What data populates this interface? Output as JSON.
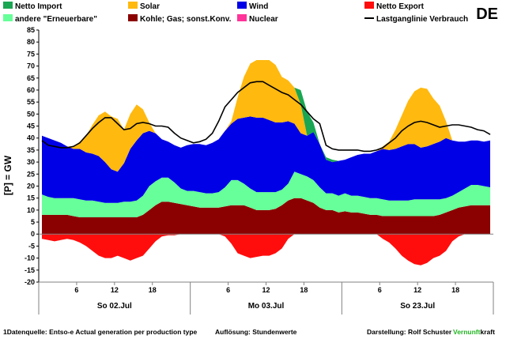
{
  "country": "DE",
  "chart_data": {
    "type": "area",
    "ylabel": "[P] = GW",
    "ylim": [
      -20,
      85
    ],
    "y_ticks": [
      -20,
      -15,
      -10,
      -5,
      0,
      5,
      10,
      15,
      20,
      25,
      30,
      35,
      40,
      45,
      50,
      55,
      60,
      65,
      70,
      75,
      80,
      85
    ],
    "x_hour_ticks": [
      {
        "hour": 6,
        "label": "6"
      },
      {
        "hour": 12,
        "label": "12"
      },
      {
        "hour": 18,
        "label": "18"
      },
      {
        "hour": 30,
        "label": "6"
      },
      {
        "hour": 36,
        "label": "12"
      },
      {
        "hour": 42,
        "label": "18"
      },
      {
        "hour": 54,
        "label": "6"
      },
      {
        "hour": 60,
        "label": "12"
      },
      {
        "hour": 66,
        "label": "18"
      }
    ],
    "days": [
      "So 02.Jul",
      "Mo 03.Jul",
      "So 23.Jul"
    ],
    "hours": [
      0,
      1,
      2,
      3,
      4,
      5,
      6,
      7,
      8,
      9,
      10,
      11,
      12,
      13,
      14,
      15,
      16,
      17,
      18,
      19,
      20,
      21,
      22,
      23,
      24,
      25,
      26,
      27,
      28,
      29,
      30,
      31,
      32,
      33,
      34,
      35,
      36,
      37,
      38,
      39,
      40,
      41,
      42,
      43,
      44,
      45,
      46,
      47,
      48,
      49,
      50,
      51,
      52,
      53,
      54,
      55,
      56,
      57,
      58,
      59,
      60,
      61,
      62,
      63,
      64,
      65,
      66,
      67,
      68,
      69,
      70,
      71
    ],
    "legend": [
      {
        "key": "import",
        "label": "Netto Import",
        "color": "#1aa653"
      },
      {
        "key": "solar",
        "label": "Solar",
        "color": "#ffb90f"
      },
      {
        "key": "wind",
        "label": "Wind",
        "color": "#0000e6"
      },
      {
        "key": "export",
        "label": "Netto Export",
        "color": "#ff0d0d"
      },
      {
        "key": "renew",
        "label": "andere \"Erneuerbare\"",
        "color": "#66ff99"
      },
      {
        "key": "fossil",
        "label": "Kohle; Gas; sonst.Konv.",
        "color": "#8b0000"
      },
      {
        "key": "nuclear",
        "label": "Nuclear",
        "color": "#ff3399"
      },
      {
        "key": "load",
        "label": "Lastganglinie Verbrauch",
        "color": "#000000"
      }
    ],
    "series": [
      {
        "key": "fossil",
        "name": "Kohle; Gas; sonst.Konv.",
        "values": [
          8,
          8,
          8,
          8,
          8,
          7.5,
          7,
          7,
          7,
          7,
          7,
          7,
          7,
          7,
          7,
          7,
          8,
          10,
          12,
          13.5,
          13.5,
          13,
          12.5,
          12,
          11.5,
          11,
          11,
          11,
          11,
          11.5,
          12,
          12,
          12,
          11,
          10,
          10,
          10,
          10.5,
          12,
          14,
          15,
          15,
          14,
          13,
          11,
          10,
          10,
          9,
          9.5,
          9,
          9,
          8.5,
          8,
          8,
          7.5,
          7.5,
          7.5,
          7.5,
          7.5,
          7.5,
          7.5,
          7.5,
          7.5,
          8,
          9,
          10,
          11,
          11.5,
          12,
          12,
          12,
          12
        ]
      },
      {
        "key": "renew",
        "name": "andere \"Erneuerbare\"",
        "values": [
          8.5,
          7.5,
          7,
          7,
          7,
          7.5,
          7.5,
          7,
          7,
          6.5,
          6,
          6,
          6,
          6.5,
          6.5,
          7,
          8,
          10,
          10,
          10,
          10,
          8.5,
          6.5,
          6,
          6.5,
          6.5,
          6,
          6,
          6.5,
          8,
          10.5,
          10.5,
          9,
          8,
          7.5,
          7.5,
          7.5,
          7,
          6.5,
          7,
          11,
          10,
          10,
          9.5,
          8.5,
          7,
          7,
          7,
          7.5,
          7,
          7,
          7,
          7,
          7,
          7,
          6.5,
          6.5,
          6.5,
          6.5,
          7,
          7,
          7,
          7,
          6.5,
          6,
          6,
          6.5,
          7.5,
          8.5,
          8.5,
          8,
          7.5
        ]
      },
      {
        "key": "wind",
        "name": "Wind",
        "values": [
          24.5,
          24.5,
          24,
          23,
          21.5,
          20.5,
          21,
          20,
          19.5,
          19,
          17,
          14,
          13,
          16,
          22,
          25,
          26,
          23,
          20,
          16,
          15,
          15.5,
          17,
          19,
          19.5,
          20,
          20,
          21,
          22,
          23.5,
          23.5,
          25.5,
          27.5,
          30,
          31,
          31,
          30,
          29,
          28,
          26,
          20,
          17,
          17,
          20,
          18,
          14,
          13,
          14.5,
          14,
          16,
          17,
          18,
          18.5,
          19.5,
          21,
          21,
          21.5,
          22.5,
          23.5,
          23,
          21.5,
          22,
          23,
          24,
          25,
          23,
          21,
          19.5,
          18.5,
          18.5,
          18.5,
          19.5
        ]
      },
      {
        "key": "solar",
        "name": "Solar",
        "values": [
          0,
          0,
          0,
          0,
          0,
          1,
          3,
          7,
          12,
          17,
          21,
          22,
          22,
          14,
          14.5,
          15,
          10,
          3.5,
          0,
          0,
          0,
          0,
          0,
          0,
          0,
          0,
          0,
          0,
          0,
          0,
          1,
          9,
          17,
          22,
          24,
          24,
          25,
          24,
          19,
          17,
          15,
          12,
          0,
          0,
          0,
          0,
          0,
          0,
          0,
          0,
          0,
          0,
          0,
          0,
          1,
          3.5,
          8,
          13,
          18,
          22,
          25,
          24,
          19,
          15,
          7,
          0,
          0,
          0,
          0,
          0,
          0,
          0
        ]
      },
      {
        "key": "import",
        "name": "Netto Import",
        "values": [
          0,
          0,
          0,
          0,
          0,
          0,
          0,
          0,
          0,
          0,
          0,
          0,
          0,
          0,
          0,
          0,
          0,
          0,
          0,
          0,
          0,
          0,
          0,
          0,
          0,
          0,
          0,
          0,
          0,
          0,
          0,
          0,
          0,
          0,
          0,
          0,
          0,
          0,
          0,
          0,
          0,
          6,
          10,
          4,
          0,
          1,
          1,
          0,
          0,
          0,
          0,
          0,
          0,
          0,
          0,
          0,
          0,
          0,
          0,
          0,
          0,
          0,
          0,
          0,
          0,
          0,
          0,
          0,
          0,
          0,
          0,
          0
        ]
      },
      {
        "key": "export",
        "name": "Netto Export",
        "values": [
          2,
          2.5,
          3,
          2.5,
          2,
          2.5,
          3.5,
          5,
          7,
          9,
          10,
          10,
          9,
          10,
          11,
          10,
          9,
          6,
          3,
          1,
          0.5,
          0.5,
          0,
          0,
          0,
          0,
          0,
          0,
          0,
          1,
          4,
          8,
          9,
          10,
          9.5,
          9,
          9,
          8,
          6,
          2,
          0,
          0,
          0,
          0,
          0,
          0,
          0,
          0,
          0,
          0,
          0,
          0,
          0,
          0,
          2,
          3.5,
          6,
          9,
          11,
          12.5,
          13,
          12,
          10,
          9,
          7,
          3,
          1,
          0,
          0,
          0,
          0,
          0
        ]
      },
      {
        "key": "load",
        "name": "Lastganglinie Verbrauch",
        "values": [
          39,
          37,
          36.5,
          36,
          36,
          36.5,
          38,
          41,
          44,
          46.5,
          48.5,
          48.5,
          46,
          43.5,
          44,
          46,
          46.5,
          46,
          45,
          45,
          44.5,
          42,
          40,
          39,
          38,
          38.5,
          39.5,
          42,
          47,
          53,
          56,
          59,
          61,
          63,
          63.5,
          63.5,
          62,
          60.5,
          59,
          58,
          56,
          54,
          51,
          48,
          46,
          37,
          35.5,
          35,
          35,
          35,
          35,
          34.5,
          34.5,
          35,
          36,
          38,
          40,
          43,
          45,
          46.5,
          47,
          46.5,
          45.5,
          44.5,
          45,
          45.5,
          45.5,
          45,
          44.5,
          43.5,
          43,
          41.5
        ]
      }
    ]
  },
  "footer": {
    "source": "1Datenquelle: Entso-e  Actual generation per production type",
    "resolution": "Auflösung: Stundenwerte",
    "author": "Darstellung:  Rolf Schuster",
    "brand_a": "Vernunft",
    "brand_b": "kraft"
  }
}
